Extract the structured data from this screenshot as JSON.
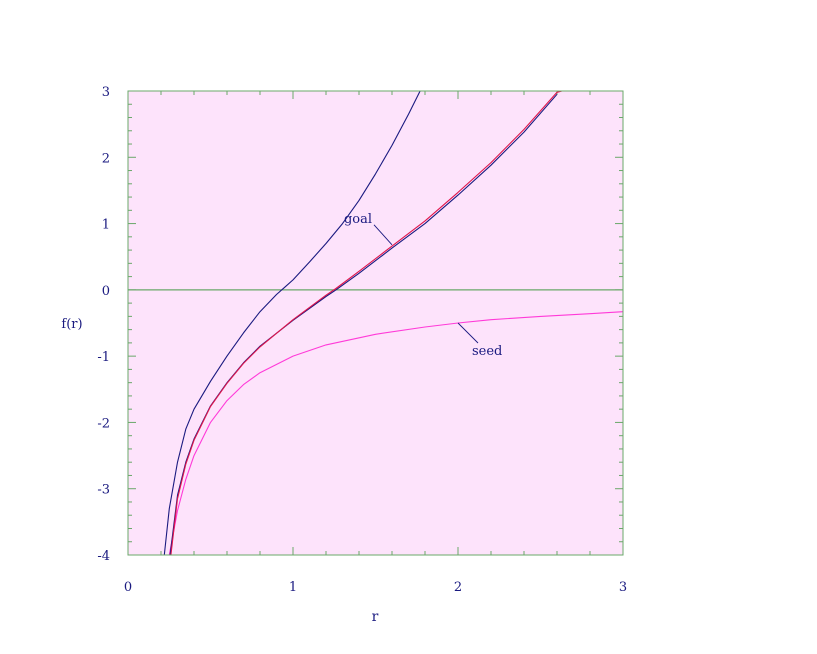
{
  "chart_data": {
    "type": "line",
    "xlabel": "r",
    "ylabel": "f(r)",
    "xlim": [
      0,
      3
    ],
    "ylim": [
      -4,
      3
    ],
    "x_ticks": [
      0,
      1,
      2,
      3
    ],
    "y_ticks": [
      -4,
      -3,
      -2,
      -1,
      0,
      1,
      2,
      3
    ],
    "x_tick_labels": [
      "0",
      "1",
      "2",
      "3"
    ],
    "y_tick_labels": [
      "-4",
      "-3",
      "-2",
      "-1",
      "0",
      "1",
      "2",
      "3"
    ],
    "grid": false,
    "zero_line": true,
    "colors": {
      "background": "#fde3fb",
      "frame": "#6aa86a",
      "text": "#1a1a80",
      "curve_navy": "#1a1a80",
      "curve_magenta": "#ff3ad8",
      "curve_red": "#e0144a"
    },
    "series": [
      {
        "name": "seed",
        "color": "#ff3ad8",
        "x": [
          0.25,
          0.3,
          0.35,
          0.4,
          0.5,
          0.6,
          0.7,
          0.8,
          1.0,
          1.2,
          1.5,
          1.8,
          2.0,
          2.2,
          2.5,
          2.8,
          3.0
        ],
        "y": [
          -4.0,
          -3.33,
          -2.86,
          -2.5,
          -2.0,
          -1.67,
          -1.43,
          -1.25,
          -1.0,
          -0.83,
          -0.67,
          -0.56,
          -0.5,
          -0.45,
          -0.4,
          -0.36,
          -0.33
        ]
      },
      {
        "name": "goal",
        "color": "#1a1a80",
        "x": [
          0.255,
          0.3,
          0.35,
          0.4,
          0.5,
          0.6,
          0.7,
          0.8,
          1.0,
          1.2,
          1.26,
          1.4,
          1.6,
          1.8,
          2.0,
          2.2,
          2.4,
          2.6
        ],
        "y": [
          -4.0,
          -3.1,
          -2.6,
          -2.25,
          -1.75,
          -1.4,
          -1.1,
          -0.85,
          -0.46,
          -0.1,
          0.0,
          0.25,
          0.63,
          1.0,
          1.43,
          1.88,
          2.38,
          2.95
        ]
      },
      {
        "name": "",
        "color": "#e0144a",
        "x": [
          0.26,
          0.3,
          0.35,
          0.4,
          0.5,
          0.6,
          0.7,
          0.8,
          1.0,
          1.2,
          1.26,
          1.4,
          1.6,
          1.8,
          2.0,
          2.2,
          2.4,
          2.6,
          2.63
        ],
        "y": [
          -4.0,
          -3.15,
          -2.63,
          -2.27,
          -1.76,
          -1.41,
          -1.11,
          -0.86,
          -0.45,
          -0.08,
          0.02,
          0.28,
          0.66,
          1.04,
          1.47,
          1.92,
          2.42,
          2.98,
          3.0
        ]
      },
      {
        "name": "",
        "color": "#1a1a80",
        "x": [
          0.22,
          0.25,
          0.3,
          0.35,
          0.4,
          0.5,
          0.6,
          0.7,
          0.8,
          0.9,
          0.95,
          1.0,
          1.1,
          1.2,
          1.3,
          1.4,
          1.5,
          1.6,
          1.7,
          1.77
        ],
        "y": [
          -4.0,
          -3.3,
          -2.6,
          -2.1,
          -1.8,
          -1.38,
          -1.0,
          -0.65,
          -0.33,
          -0.07,
          0.04,
          0.15,
          0.42,
          0.7,
          1.0,
          1.35,
          1.75,
          2.18,
          2.65,
          3.0
        ]
      }
    ],
    "annotations": [
      {
        "text": "goal",
        "target": {
          "x": 1.6,
          "y": 0.68
        },
        "anchor": "upper-left"
      },
      {
        "text": "seed",
        "target": {
          "x": 2.0,
          "y": -0.5
        },
        "anchor": "lower-right"
      }
    ]
  }
}
